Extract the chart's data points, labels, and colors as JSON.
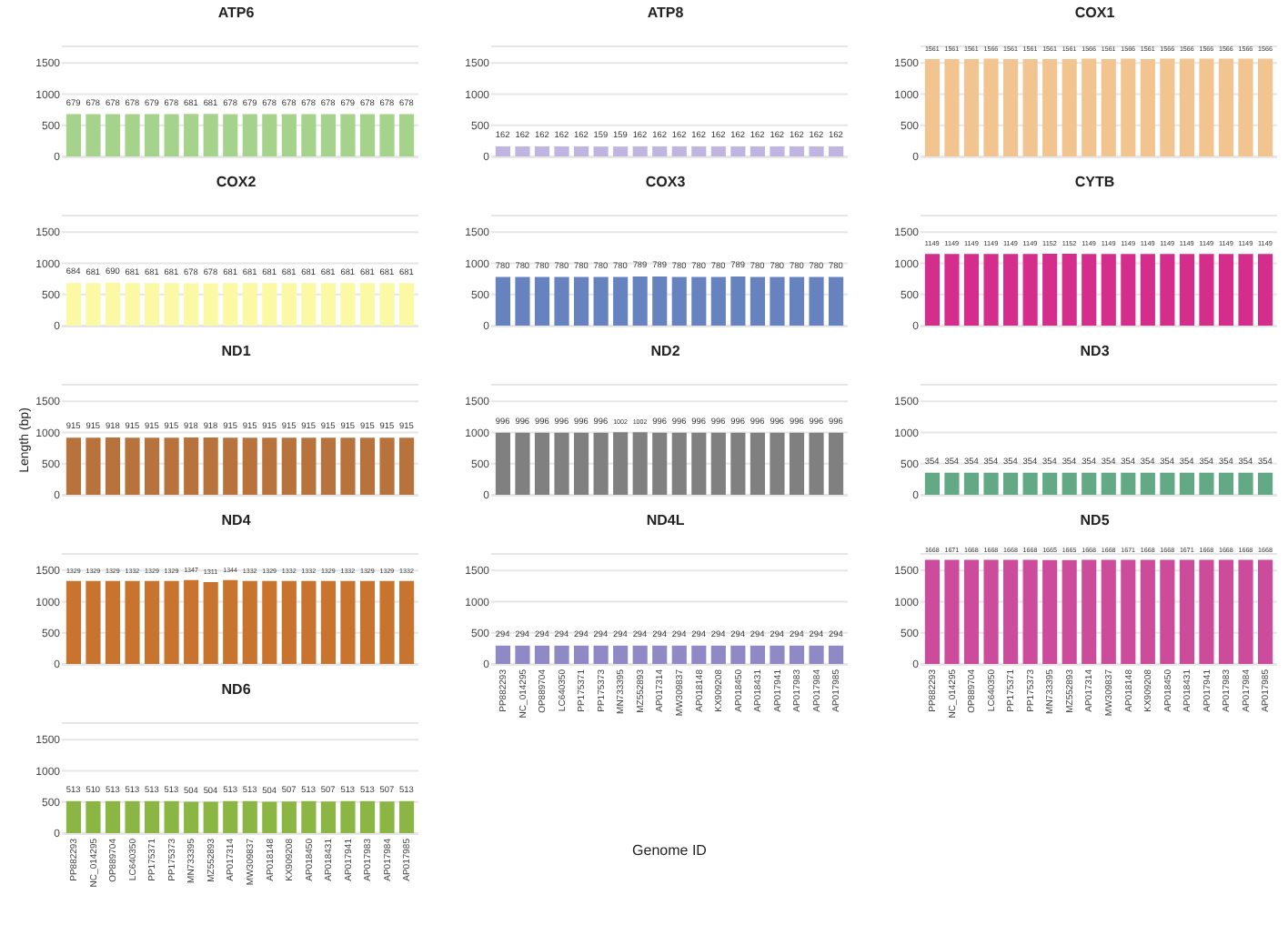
{
  "chart_data": [
    {
      "type": "bar",
      "title": "ATP6",
      "categories": [
        null,
        null,
        null,
        null,
        null,
        null,
        null,
        null,
        null,
        null,
        null,
        null,
        null,
        null,
        null,
        null,
        null,
        null
      ],
      "values": [
        679,
        678,
        678,
        678,
        679,
        678,
        681,
        681,
        678,
        679,
        678,
        678,
        678,
        678,
        679,
        678,
        678,
        678
      ],
      "color": "#a6d38b",
      "ylim": [
        0,
        1750
      ],
      "yticks": [
        0,
        500,
        1000,
        1500
      ],
      "grid": "y",
      "data_labels": true,
      "tick_labels": "y",
      "legend": false
    },
    {
      "type": "bar",
      "title": "ATP8",
      "categories": [
        null,
        null,
        null,
        null,
        null,
        null,
        null,
        null,
        null,
        null,
        null,
        null,
        null,
        null,
        null,
        null,
        null,
        null
      ],
      "values": [
        162,
        162,
        162,
        162,
        162,
        159,
        159,
        162,
        162,
        162,
        162,
        162,
        162,
        162,
        162,
        162,
        162,
        162
      ],
      "color": "#bfb5e0",
      "ylim": [
        0,
        1750
      ],
      "yticks": [
        0,
        500,
        1000,
        1500
      ],
      "grid": "y",
      "data_labels": true,
      "tick_labels": "y",
      "legend": false
    },
    {
      "type": "bar",
      "title": "COX1",
      "categories": [
        null,
        null,
        null,
        null,
        null,
        null,
        null,
        null,
        null,
        null,
        null,
        null,
        null,
        null,
        null,
        null,
        null,
        null
      ],
      "values": [
        1561,
        1561,
        1561,
        1566,
        1561,
        1561,
        1561,
        1561,
        1566,
        1561,
        1566,
        1561,
        1566,
        1566,
        1566,
        1566,
        1566,
        1566
      ],
      "color": "#f2c590",
      "ylim": [
        0,
        1750
      ],
      "yticks": [
        0,
        500,
        1000,
        1500
      ],
      "grid": "y",
      "data_labels": true,
      "tick_labels": "y",
      "legend": false
    },
    {
      "type": "bar",
      "title": "COX2",
      "categories": [
        null,
        null,
        null,
        null,
        null,
        null,
        null,
        null,
        null,
        null,
        null,
        null,
        null,
        null,
        null,
        null,
        null,
        null
      ],
      "values": [
        684,
        681,
        690,
        681,
        681,
        681,
        678,
        678,
        681,
        681,
        681,
        681,
        681,
        681,
        681,
        681,
        681,
        681
      ],
      "color": "#fbf9a3",
      "ylim": [
        0,
        1750
      ],
      "yticks": [
        0,
        500,
        1000,
        1500
      ],
      "grid": "y",
      "data_labels": true,
      "tick_labels": "y",
      "legend": false
    },
    {
      "type": "bar",
      "title": "COX3",
      "categories": [
        null,
        null,
        null,
        null,
        null,
        null,
        null,
        null,
        null,
        null,
        null,
        null,
        null,
        null,
        null,
        null,
        null,
        null
      ],
      "values": [
        780,
        780,
        780,
        780,
        780,
        780,
        780,
        789,
        789,
        780,
        780,
        780,
        789,
        780,
        780,
        780,
        780,
        780
      ],
      "color": "#6683bf",
      "ylim": [
        0,
        1750
      ],
      "yticks": [
        0,
        500,
        1000,
        1500
      ],
      "grid": "y",
      "data_labels": true,
      "tick_labels": "y",
      "legend": false
    },
    {
      "type": "bar",
      "title": "CYTB",
      "categories": [
        null,
        null,
        null,
        null,
        null,
        null,
        null,
        null,
        null,
        null,
        null,
        null,
        null,
        null,
        null,
        null,
        null,
        null
      ],
      "values": [
        1149,
        1149,
        1149,
        1149,
        1149,
        1149,
        1152,
        1152,
        1149,
        1149,
        1149,
        1149,
        1149,
        1149,
        1149,
        1149,
        1149,
        1149
      ],
      "color": "#d42d8b",
      "ylim": [
        0,
        1750
      ],
      "yticks": [
        0,
        500,
        1000,
        1500
      ],
      "grid": "y",
      "data_labels": true,
      "tick_labels": "y",
      "legend": false
    },
    {
      "type": "bar",
      "title": "ND1",
      "ylabel": "Length (bp)",
      "categories": [
        null,
        null,
        null,
        null,
        null,
        null,
        null,
        null,
        null,
        null,
        null,
        null,
        null,
        null,
        null,
        null,
        null,
        null
      ],
      "values": [
        915,
        915,
        918,
        915,
        915,
        915,
        918,
        918,
        915,
        915,
        915,
        915,
        915,
        915,
        915,
        915,
        915,
        915
      ],
      "color": "#b8733d",
      "ylim": [
        0,
        1750
      ],
      "yticks": [
        0,
        500,
        1000,
        1500
      ],
      "grid": "y",
      "data_labels": true,
      "tick_labels": "y",
      "legend": false
    },
    {
      "type": "bar",
      "title": "ND2",
      "categories": [
        null,
        null,
        null,
        null,
        null,
        null,
        null,
        null,
        null,
        null,
        null,
        null,
        null,
        null,
        null,
        null,
        null,
        null
      ],
      "values": [
        996,
        996,
        996,
        996,
        996,
        996,
        1002,
        1002,
        996,
        996,
        996,
        996,
        996,
        996,
        996,
        996,
        996,
        996
      ],
      "color": "#808080",
      "ylim": [
        0,
        1750
      ],
      "yticks": [
        0,
        500,
        1000,
        1500
      ],
      "grid": "y",
      "data_labels": true,
      "tick_labels": "y",
      "legend": false
    },
    {
      "type": "bar",
      "title": "ND3",
      "categories": [
        null,
        null,
        null,
        null,
        null,
        null,
        null,
        null,
        null,
        null,
        null,
        null,
        null,
        null,
        null,
        null,
        null,
        null
      ],
      "values": [
        354,
        354,
        354,
        354,
        354,
        354,
        354,
        354,
        354,
        354,
        354,
        354,
        354,
        354,
        354,
        354,
        354,
        354
      ],
      "color": "#64a985",
      "ylim": [
        0,
        1750
      ],
      "yticks": [
        0,
        500,
        1000,
        1500
      ],
      "grid": "y",
      "data_labels": true,
      "tick_labels": "y",
      "legend": false
    },
    {
      "type": "bar",
      "title": "ND4",
      "categories": [
        null,
        null,
        null,
        null,
        null,
        null,
        null,
        null,
        null,
        null,
        null,
        null,
        null,
        null,
        null,
        null,
        null,
        null
      ],
      "values": [
        1329,
        1329,
        1329,
        1332,
        1329,
        1329,
        1347,
        1311,
        1344,
        1332,
        1329,
        1332,
        1332,
        1329,
        1332,
        1329,
        1329,
        1332
      ],
      "color": "#c8742f",
      "ylim": [
        0,
        1750
      ],
      "yticks": [
        0,
        500,
        1000,
        1500
      ],
      "grid": "y",
      "data_labels": true,
      "tick_labels": "y",
      "legend": false
    },
    {
      "type": "bar",
      "title": "ND4L",
      "xlabel": "Genome ID",
      "categories": [
        "PP882293",
        "NC_014295",
        "OP889704",
        "LC640350",
        "PP175371",
        "PP175373",
        "MN733395",
        "MZ552893",
        "AP017314",
        "MW309837",
        "AP018148",
        "KX909208",
        "AP018450",
        "AP018431",
        "AP017941",
        "AP017983",
        "AP017984",
        "AP017985"
      ],
      "values": [
        294,
        294,
        294,
        294,
        294,
        294,
        294,
        294,
        294,
        294,
        294,
        294,
        294,
        294,
        294,
        294,
        294,
        294
      ],
      "color": "#8f8ac6",
      "ylim": [
        0,
        1750
      ],
      "yticks": [
        0,
        500,
        1000,
        1500
      ],
      "grid": "y",
      "data_labels": true,
      "legend": false
    },
    {
      "type": "bar",
      "title": "ND5",
      "categories": [
        "PP882293",
        "NC_014295",
        "OP889704",
        "LC640350",
        "PP175371",
        "PP175373",
        "MN733395",
        "MZ552893",
        "AP017314",
        "MW309837",
        "AP018148",
        "KX909208",
        "AP018450",
        "AP018431",
        "AP017941",
        "AP017983",
        "AP017984",
        "AP017985"
      ],
      "values": [
        1668,
        1671,
        1668,
        1668,
        1668,
        1668,
        1665,
        1665,
        1668,
        1668,
        1671,
        1668,
        1668,
        1671,
        1668,
        1668,
        1668,
        1668
      ],
      "color": "#cc4c9b",
      "ylim": [
        0,
        1750
      ],
      "yticks": [
        0,
        500,
        1000,
        1500
      ],
      "grid": "y",
      "data_labels": true,
      "legend": false
    },
    {
      "type": "bar",
      "title": "ND6",
      "categories": [
        "PP882293",
        "NC_014295",
        "OP889704",
        "LC640350",
        "PP175371",
        "PP175373",
        "MN733395",
        "MZ552893",
        "AP017314",
        "MW309837",
        "AP018148",
        "KX909208",
        "AP018450",
        "AP018431",
        "AP017941",
        "AP017983",
        "AP017984",
        "AP017985"
      ],
      "values": [
        513,
        510,
        513,
        513,
        513,
        513,
        504,
        504,
        513,
        513,
        504,
        507,
        513,
        507,
        513,
        513,
        507,
        513
      ],
      "color": "#8bb644",
      "ylim": [
        0,
        1750
      ],
      "yticks": [
        0,
        500,
        1000,
        1500
      ],
      "grid": "y",
      "data_labels": true,
      "legend": false
    }
  ]
}
